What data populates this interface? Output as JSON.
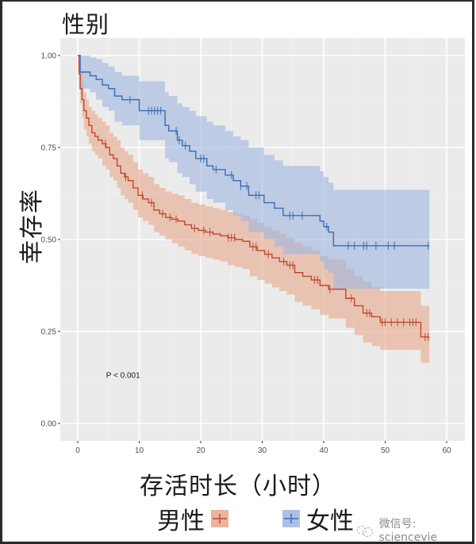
{
  "figure": {
    "title": "性别",
    "ylabel": "幸存率",
    "xlabel": "存活时长（小时）",
    "pvalue_text": "P < 0.001",
    "watermark": "微信号: sciencevie",
    "colors": {
      "male_line": "#C0472B",
      "male_band": "#E8A88C",
      "female_line": "#3B6CB3",
      "female_band": "#9FB6E0",
      "panel_bg": "#EBEBEB",
      "grid_major": "#FFFFFF",
      "axis_text": "#4D4D4D"
    },
    "legend": [
      {
        "label": "男性",
        "color": "#C0472B",
        "fill": "#E8A88C"
      },
      {
        "label": "女性",
        "color": "#3B6CB3",
        "fill": "#9FB6E0"
      }
    ]
  },
  "chart_data": {
    "type": "line",
    "subtype": "kaplan-meier step survival curve with confidence bands",
    "title": "性别",
    "xlabel": "存活时长（小时）",
    "ylabel": "幸存率",
    "xlim": [
      -3,
      63
    ],
    "ylim": [
      -0.05,
      1.05
    ],
    "x_ticks": [
      0,
      10,
      20,
      30,
      40,
      50,
      60
    ],
    "y_ticks": [
      0.0,
      0.25,
      0.5,
      0.75,
      1.0
    ],
    "y_tick_labels": [
      "0.00",
      "0.25",
      "0.50",
      "0.75",
      "1.00"
    ],
    "grid": true,
    "legend_position": "bottom",
    "annotation": {
      "text": "P < 0.001",
      "x": 5,
      "y": 0.13
    },
    "series": [
      {
        "name": "男性",
        "color": "#C0472B",
        "x": [
          0,
          0.2,
          0.4,
          0.7,
          1.0,
          1.4,
          1.8,
          2.3,
          2.8,
          3.3,
          4.0,
          4.6,
          5.2,
          5.8,
          6.4,
          7.0,
          7.6,
          8.2,
          9.0,
          9.8,
          10.6,
          11.5,
          12.4,
          13.3,
          14.3,
          15.3,
          16.3,
          17.4,
          18.5,
          19.6,
          20.8,
          22.0,
          23.2,
          24.4,
          25.6,
          26.8,
          28.0,
          29.2,
          30.4,
          31.6,
          32.8,
          34.0,
          35.3,
          36.6,
          38.0,
          39.4,
          40.8,
          42.2,
          43.6,
          45.0,
          46.4,
          47.8,
          49.2,
          55.3,
          55.8,
          57.2
        ],
        "y": [
          1.0,
          0.95,
          0.91,
          0.88,
          0.85,
          0.83,
          0.81,
          0.79,
          0.78,
          0.77,
          0.76,
          0.75,
          0.73,
          0.72,
          0.7,
          0.68,
          0.67,
          0.66,
          0.64,
          0.62,
          0.61,
          0.6,
          0.58,
          0.57,
          0.56,
          0.555,
          0.55,
          0.54,
          0.53,
          0.525,
          0.52,
          0.515,
          0.51,
          0.505,
          0.5,
          0.495,
          0.48,
          0.47,
          0.46,
          0.45,
          0.44,
          0.43,
          0.41,
          0.4,
          0.39,
          0.375,
          0.365,
          0.365,
          0.34,
          0.32,
          0.3,
          0.29,
          0.275,
          0.275,
          0.235,
          0.235
        ],
        "ci_lower": [
          1.0,
          0.91,
          0.87,
          0.83,
          0.8,
          0.78,
          0.76,
          0.74,
          0.73,
          0.72,
          0.7,
          0.69,
          0.67,
          0.66,
          0.64,
          0.62,
          0.61,
          0.6,
          0.58,
          0.56,
          0.55,
          0.54,
          0.52,
          0.51,
          0.5,
          0.49,
          0.48,
          0.47,
          0.46,
          0.455,
          0.45,
          0.445,
          0.44,
          0.43,
          0.425,
          0.42,
          0.4,
          0.39,
          0.38,
          0.37,
          0.36,
          0.35,
          0.33,
          0.32,
          0.31,
          0.295,
          0.285,
          0.285,
          0.26,
          0.24,
          0.22,
          0.21,
          0.2,
          0.2,
          0.165,
          0.165
        ],
        "ci_upper": [
          1.0,
          0.99,
          0.96,
          0.93,
          0.9,
          0.88,
          0.86,
          0.85,
          0.84,
          0.83,
          0.82,
          0.81,
          0.79,
          0.78,
          0.77,
          0.75,
          0.74,
          0.73,
          0.71,
          0.69,
          0.68,
          0.67,
          0.65,
          0.64,
          0.63,
          0.625,
          0.62,
          0.61,
          0.6,
          0.595,
          0.59,
          0.585,
          0.58,
          0.575,
          0.57,
          0.565,
          0.555,
          0.545,
          0.535,
          0.525,
          0.515,
          0.505,
          0.49,
          0.48,
          0.47,
          0.455,
          0.445,
          0.445,
          0.42,
          0.4,
          0.385,
          0.37,
          0.36,
          0.36,
          0.32,
          0.32
        ],
        "censor_x": [
          4.5,
          7.8,
          10.5,
          12.0,
          13.8,
          15.0,
          16.0,
          19.0,
          20.5,
          21.5,
          24.5,
          25.0,
          25.5,
          28.5,
          29.0,
          31.0,
          33.5,
          34.5,
          35.0,
          38.5,
          39.0,
          41.0,
          44.5,
          47.0,
          47.5,
          49.5,
          50.0,
          51.0,
          52.0,
          53.0,
          54.0,
          54.5,
          55.0,
          56.5,
          57.0
        ]
      },
      {
        "name": "女性",
        "color": "#3B6CB3",
        "x": [
          0,
          0.4,
          2.0,
          3.0,
          4.0,
          5.0,
          6.0,
          7.2,
          10.0,
          14.2,
          14.8,
          16.2,
          17.0,
          18.2,
          19.2,
          21.0,
          22.0,
          24.0,
          25.3,
          26.5,
          27.8,
          30.3,
          32.0,
          33.4,
          38.0,
          39.4,
          40.0,
          40.8,
          41.6,
          57.2
        ],
        "y": [
          1.0,
          0.955,
          0.945,
          0.935,
          0.92,
          0.91,
          0.89,
          0.88,
          0.85,
          0.81,
          0.795,
          0.77,
          0.755,
          0.74,
          0.72,
          0.7,
          0.69,
          0.675,
          0.66,
          0.645,
          0.62,
          0.6,
          0.585,
          0.565,
          0.565,
          0.55,
          0.535,
          0.52,
          0.483,
          0.483
        ],
        "ci_lower": [
          1.0,
          0.91,
          0.9,
          0.88,
          0.86,
          0.85,
          0.82,
          0.81,
          0.77,
          0.72,
          0.71,
          0.68,
          0.67,
          0.65,
          0.63,
          0.61,
          0.6,
          0.58,
          0.565,
          0.55,
          0.52,
          0.5,
          0.48,
          0.46,
          0.46,
          0.44,
          0.42,
          0.41,
          0.366,
          0.366
        ],
        "ci_upper": [
          1.0,
          1.0,
          0.995,
          0.99,
          0.98,
          0.97,
          0.955,
          0.945,
          0.93,
          0.9,
          0.89,
          0.87,
          0.86,
          0.85,
          0.835,
          0.82,
          0.81,
          0.795,
          0.78,
          0.77,
          0.75,
          0.73,
          0.715,
          0.7,
          0.7,
          0.685,
          0.67,
          0.655,
          0.635,
          0.635
        ],
        "censor_x": [
          8.5,
          11.5,
          12.0,
          12.5,
          13.0,
          13.5,
          16.0,
          16.5,
          17.5,
          20.0,
          20.5,
          22.5,
          25.0,
          26.5,
          27.5,
          29.0,
          29.5,
          34.5,
          35.0,
          36.5,
          40.5,
          44.0,
          45.0,
          46.5,
          47.0,
          48.5,
          50.5,
          51.5,
          57.0
        ]
      }
    ]
  }
}
